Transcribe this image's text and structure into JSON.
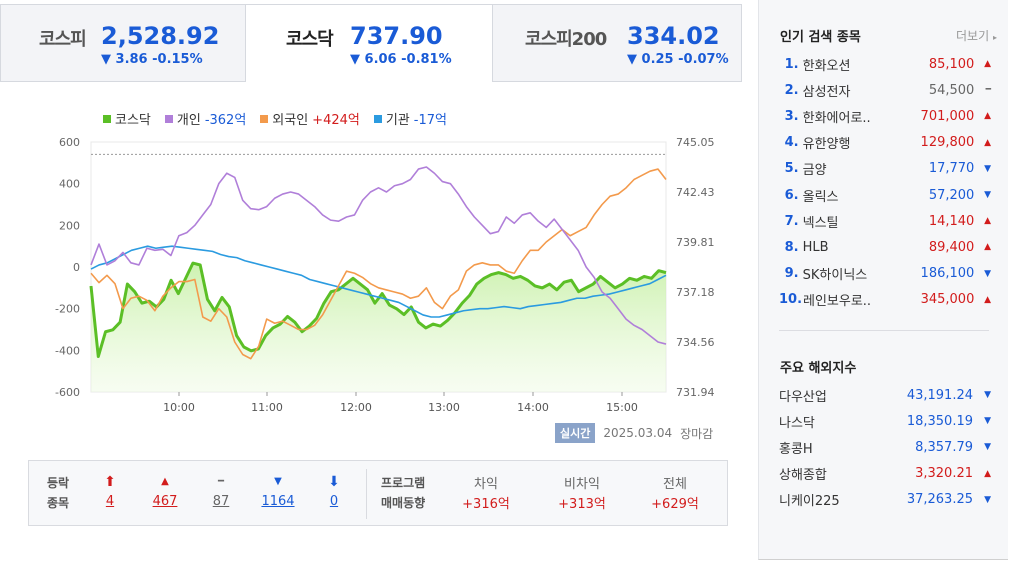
{
  "tabs": [
    {
      "name": "코스피",
      "value": "2,528.92",
      "change": "▼ 3.86 -0.15%",
      "active": false
    },
    {
      "name": "코스닥",
      "value": "737.90",
      "change": "▼ 6.06 -0.81%",
      "active": true
    },
    {
      "name": "코스피200",
      "value": "334.02",
      "change": "▼ 0.25 -0.07%",
      "active": false
    }
  ],
  "legend": [
    {
      "label": "코스닥",
      "value": "",
      "color": "#5bbf26"
    },
    {
      "label": "개인",
      "value": "-362억",
      "color": "#b07fd9",
      "sign": "neg"
    },
    {
      "label": "외국인",
      "value": "+424억",
      "color": "#f39a4c",
      "sign": "pos"
    },
    {
      "label": "기관",
      "value": "-17억",
      "color": "#2b9be0",
      "sign": "neg"
    }
  ],
  "chart_data": {
    "type": "line",
    "left_ticks": [
      "600",
      "400",
      "200",
      "0",
      "-200",
      "-400",
      "-600"
    ],
    "right_ticks": [
      "745.05",
      "742.43",
      "739.81",
      "737.18",
      "734.56",
      "731.94"
    ],
    "x_ticks": [
      "10:00",
      "11:00",
      "12:00",
      "13:00",
      "14:00",
      "15:00"
    ],
    "ylim_left": [
      -600,
      600
    ],
    "ylim_right": [
      731.94,
      745.05
    ],
    "reference_line": 744.4,
    "series": [
      {
        "name": "코스닥",
        "color": "#5bbf26",
        "axis": "right",
        "values": [
          737.5,
          733.8,
          735.1,
          735.2,
          735.6,
          737.6,
          737.2,
          736.6,
          736.7,
          736.4,
          736.8,
          737.8,
          737.1,
          737.9,
          738.7,
          738.6,
          736.8,
          736.2,
          736.9,
          736.4,
          734.9,
          734.3,
          734.1,
          734.2,
          734.9,
          735.3,
          735.5,
          735.9,
          735.6,
          735.1,
          735.4,
          735.8,
          736.6,
          737.2,
          737.3,
          737.6,
          737.9,
          737.6,
          737.3,
          736.6,
          737.1,
          736.5,
          736.3,
          736.0,
          736.4,
          735.6,
          735.3,
          735.5,
          735.4,
          735.7,
          736.1,
          736.6,
          737.0,
          737.6,
          737.9,
          738.1,
          738.2,
          738.1,
          737.9,
          738.0,
          737.8,
          737.5,
          737.4,
          737.6,
          737.3,
          737.7,
          737.8,
          737.2,
          737.4,
          737.6,
          738.0,
          737.7,
          737.4,
          737.6,
          737.9,
          737.8,
          738.0,
          737.9,
          738.3,
          738.2
        ]
      },
      {
        "name": "개인",
        "color": "#b07fd9",
        "axis": "left",
        "values": [
          10,
          110,
          10,
          30,
          70,
          20,
          10,
          90,
          80,
          85,
          55,
          150,
          165,
          200,
          250,
          300,
          400,
          450,
          430,
          320,
          280,
          275,
          290,
          330,
          350,
          360,
          350,
          320,
          290,
          250,
          225,
          220,
          240,
          250,
          320,
          360,
          380,
          360,
          390,
          400,
          420,
          470,
          480,
          450,
          410,
          400,
          350,
          290,
          240,
          200,
          160,
          170,
          240,
          210,
          250,
          260,
          220,
          190,
          230,
          180,
          130,
          80,
          0,
          -50,
          -120,
          -150,
          -200,
          -250,
          -280,
          -300,
          -330,
          -360,
          -370
        ]
      },
      {
        "name": "외국인",
        "color": "#f39a4c",
        "axis": "left",
        "values": [
          -30,
          -75,
          -40,
          -80,
          -200,
          -150,
          -140,
          -160,
          -210,
          -140,
          -100,
          -70,
          -70,
          -60,
          -240,
          -260,
          -200,
          -240,
          -360,
          -420,
          -440,
          -380,
          -250,
          -270,
          -260,
          -280,
          -300,
          -300,
          -280,
          -230,
          -160,
          -90,
          -20,
          -30,
          -50,
          -80,
          -100,
          -110,
          -120,
          -130,
          -150,
          -140,
          -100,
          -170,
          -200,
          -140,
          -110,
          -20,
          10,
          20,
          10,
          10,
          -20,
          -30,
          30,
          80,
          80,
          120,
          150,
          180,
          150,
          170,
          190,
          250,
          300,
          340,
          350,
          380,
          420,
          440,
          460,
          470,
          420
        ]
      },
      {
        "name": "기관",
        "color": "#2b9be0",
        "axis": "left",
        "values": [
          -10,
          10,
          20,
          40,
          60,
          80,
          90,
          100,
          90,
          95,
          100,
          95,
          90,
          85,
          80,
          75,
          60,
          50,
          45,
          30,
          20,
          10,
          0,
          -10,
          -20,
          -30,
          -40,
          -60,
          -70,
          -80,
          -90,
          -100,
          -110,
          -120,
          -130,
          -140,
          -150,
          -160,
          -170,
          -190,
          -210,
          -230,
          -240,
          -240,
          -230,
          -220,
          -210,
          -205,
          -200,
          -200,
          -195,
          -190,
          -195,
          -200,
          -190,
          -185,
          -180,
          -175,
          -170,
          -160,
          -150,
          -150,
          -140,
          -135,
          -130,
          -120,
          -110,
          -100,
          -90,
          -80,
          -60,
          -40
        ]
      }
    ]
  },
  "date_line": {
    "badge": "실시간",
    "date": "2025.03.04",
    "status": "장마감"
  },
  "stats": {
    "title1": "등락",
    "title2": "종목",
    "items": [
      {
        "arrow": "⬆",
        "value": "4",
        "tone": "red"
      },
      {
        "arrow": "▲",
        "value": "467",
        "tone": "red"
      },
      {
        "arrow": "━",
        "value": "87",
        "tone": "gray"
      },
      {
        "arrow": "▼",
        "value": "1164",
        "tone": "blue"
      },
      {
        "arrow": "⬇",
        "value": "0",
        "tone": "blue"
      }
    ],
    "prog1": "프로그램",
    "prog2": "매매동향",
    "program": [
      {
        "label": "차익",
        "value": "+316억"
      },
      {
        "label": "비차익",
        "value": "+313억"
      },
      {
        "label": "전체",
        "value": "+629억"
      }
    ]
  },
  "popular": {
    "title": "인기 검색 종목",
    "more": "더보기",
    "items": [
      {
        "rank": "1.",
        "name": "한화오션",
        "price": "85,100",
        "dir": "up"
      },
      {
        "rank": "2.",
        "name": "삼성전자",
        "price": "54,500",
        "dir": "flat"
      },
      {
        "rank": "3.",
        "name": "한화에어로..",
        "price": "701,000",
        "dir": "up"
      },
      {
        "rank": "4.",
        "name": "유한양행",
        "price": "129,800",
        "dir": "up"
      },
      {
        "rank": "5.",
        "name": "금양",
        "price": "17,770",
        "dir": "down"
      },
      {
        "rank": "6.",
        "name": "올릭스",
        "price": "57,200",
        "dir": "down"
      },
      {
        "rank": "7.",
        "name": "넥스틸",
        "price": "14,140",
        "dir": "up"
      },
      {
        "rank": "8.",
        "name": "HLB",
        "price": "89,400",
        "dir": "up"
      },
      {
        "rank": "9.",
        "name": "SK하이닉스",
        "price": "186,100",
        "dir": "down"
      },
      {
        "rank": "10.",
        "name": "레인보우로..",
        "price": "345,000",
        "dir": "up"
      }
    ]
  },
  "overseas": {
    "title": "주요 해외지수",
    "items": [
      {
        "name": "다우산업",
        "value": "43,191.24",
        "dir": "down"
      },
      {
        "name": "나스닥",
        "value": "18,350.19",
        "dir": "down"
      },
      {
        "name": "홍콩H",
        "value": "8,357.79",
        "dir": "down"
      },
      {
        "name": "상해종합",
        "value": "3,320.21",
        "dir": "up"
      },
      {
        "name": "니케이225",
        "value": "37,263.25",
        "dir": "down"
      }
    ]
  }
}
